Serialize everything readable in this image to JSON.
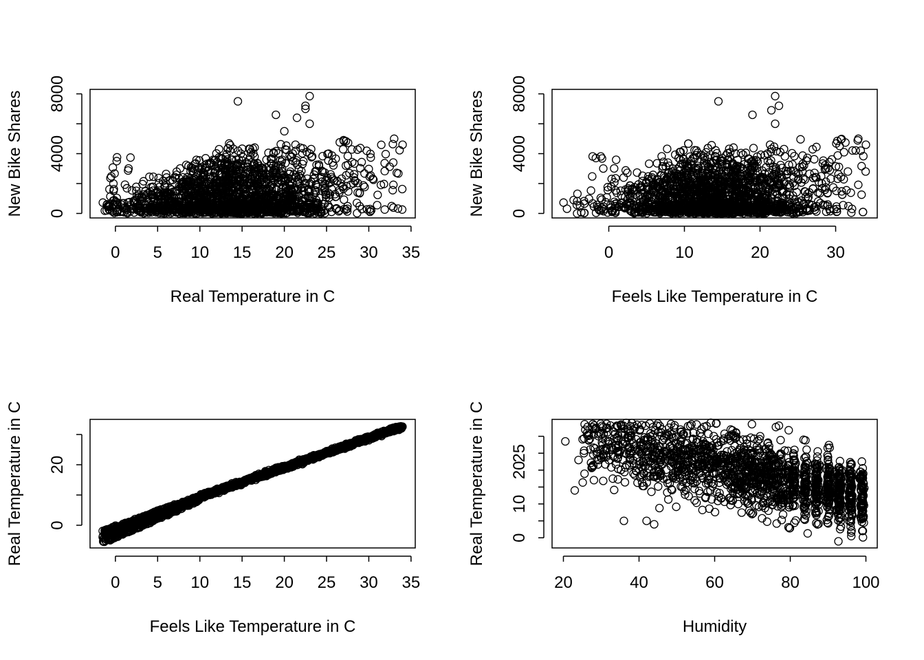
{
  "chart_data": [
    {
      "type": "scatter",
      "xlabel": "Real Temperature in C",
      "ylabel": "New Bike Shares",
      "xlim": [
        -3,
        35.5
      ],
      "ylim": [
        -300,
        8300
      ],
      "xticks": [
        0,
        5,
        10,
        15,
        20,
        25,
        30,
        35
      ],
      "yticks": [
        0,
        2000,
        4000,
        6000,
        8000
      ],
      "ytick_labels": [
        "0",
        "",
        "4000",
        "",
        "8000"
      ],
      "grid": false,
      "points_summary": "dense cloud of several thousand points; counts 0-~5000 for temperatures ~ -1 to 34 C, peak density 10-22 C",
      "outliers": [
        [
          14.5,
          7500
        ],
        [
          19,
          6600
        ],
        [
          21.5,
          6400
        ],
        [
          22.5,
          7000
        ],
        [
          22.5,
          7200
        ],
        [
          23,
          7850
        ],
        [
          23,
          6000
        ],
        [
          20,
          5500
        ],
        [
          34,
          4600
        ],
        [
          33,
          5000
        ]
      ]
    },
    {
      "type": "scatter",
      "xlabel": "Feels Like Temperature in C",
      "ylabel": "New Bike Shares",
      "xlim": [
        -7.5,
        35.5
      ],
      "ylim": [
        -300,
        8300
      ],
      "xticks": [
        0,
        10,
        20,
        30
      ],
      "yticks": [
        0,
        2000,
        4000,
        6000,
        8000
      ],
      "ytick_labels": [
        "0",
        "",
        "4000",
        "",
        "8000"
      ],
      "grid": false,
      "points_summary": "dense cloud of several thousand points; counts 0-~5000 for feels-like temperatures ~ -6 to 34 C",
      "outliers": [
        [
          14.5,
          7500
        ],
        [
          19,
          6600
        ],
        [
          21.5,
          6900
        ],
        [
          22,
          7850
        ],
        [
          22.5,
          7200
        ],
        [
          22,
          6000
        ],
        [
          34,
          4600
        ],
        [
          33,
          5000
        ]
      ]
    },
    {
      "type": "scatter",
      "xlabel": "Feels Like Temperature in C",
      "ylabel": "Real Temperature in C",
      "xlim": [
        -3,
        35.5
      ],
      "ylim": [
        -7.5,
        35
      ],
      "xticks": [
        0,
        5,
        10,
        15,
        20,
        25,
        30,
        35
      ],
      "yticks": [
        0,
        10,
        20,
        30
      ],
      "ytick_labels": [
        "0",
        "",
        "20",
        ""
      ],
      "grid": false,
      "points_summary": "near-linear relationship; real temperature ~ feels-like temperature, wider spread below 10 C where real is 0-8 C lower"
    },
    {
      "type": "scatter",
      "xlabel": "Humidity",
      "ylabel": "Real Temperature in C",
      "xlim": [
        17,
        103
      ],
      "ylim": [
        -3,
        35
      ],
      "xticks": [
        20,
        40,
        60,
        80,
        100
      ],
      "yticks": [
        0,
        5,
        10,
        15,
        20,
        25,
        30
      ],
      "ytick_labels": [
        "0",
        "",
        "10",
        "",
        "20",
        "25",
        ""
      ],
      "grid": false,
      "points_summary": "dense cloud; humidity 20-100, real temperature -2 to 34 C, negative trend, vertical banding at high humidity"
    }
  ]
}
